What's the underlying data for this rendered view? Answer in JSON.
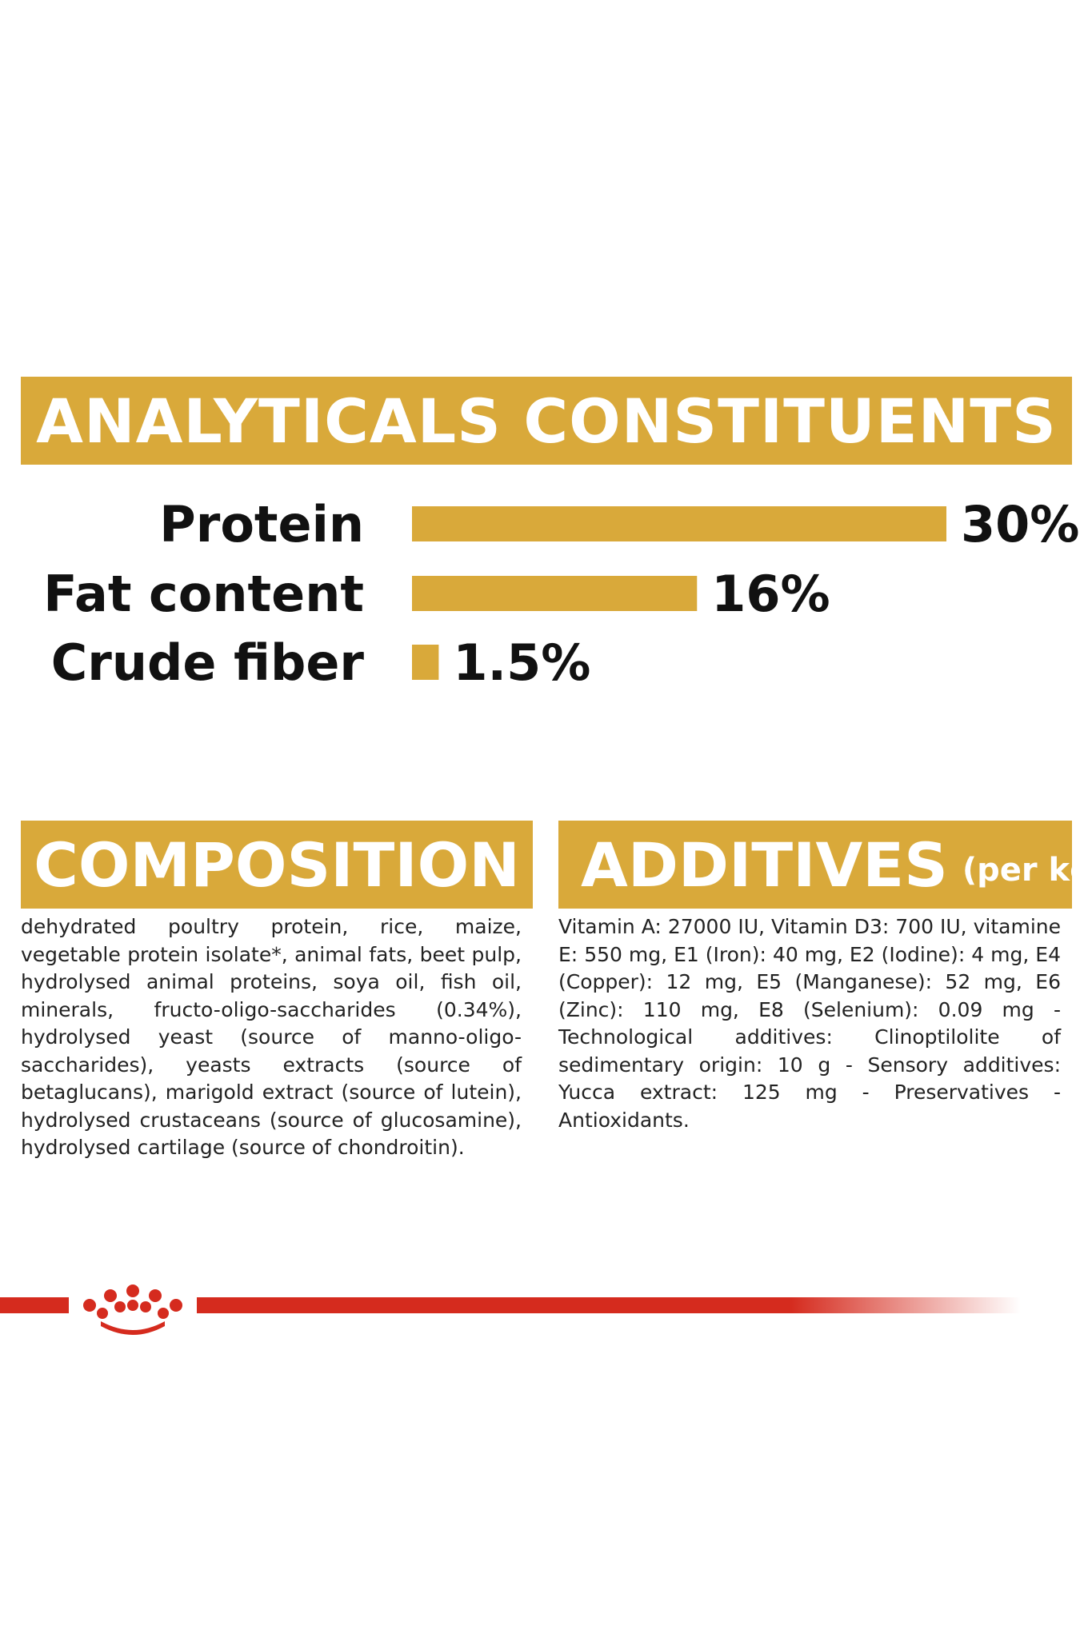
{
  "colors": {
    "accent": "#d9a93a",
    "brand_red": "#d52b1e",
    "text": "#111111"
  },
  "analytics": {
    "title": "ANALYTICALS CONSTITUENTS"
  },
  "chart_data": {
    "type": "bar",
    "orientation": "horizontal",
    "title": "ANALYTICALS CONSTITUENTS",
    "categories": [
      "Protein",
      "Fat content",
      "Crude fiber"
    ],
    "values": [
      30,
      16,
      1.5
    ],
    "value_labels": [
      "30%",
      "16%",
      "1.5%"
    ],
    "unit": "%",
    "xlim": [
      0,
      30
    ],
    "grid": false,
    "legend": "none"
  },
  "composition": {
    "title": "COMPOSITION",
    "text": "dehydrated poultry protein, rice, maize, vegetable protein isolate*, animal fats, beet pulp, hydrolysed animal proteins, soya oil, fish oil, minerals, fructo-oligo-saccharides (0.34%), hydrolysed yeast (source of manno-oligo-saccharides), yeasts extracts (source of betaglucans), marigold extract (source of lutein), hydrolysed crustaceans (source of glucosamine), hydrolysed cartilage (source of chondroitin)."
  },
  "additives": {
    "title": "ADDITIVES",
    "subtitle": "(per kg)",
    "text": "Vitamin A: 27000 IU, Vitamin D3: 700 IU, vitamine E: 550 mg, E1 (Iron): 40 mg, E2 (Iodine): 4 mg, E4 (Copper): 12 mg, E5 (Manganese): 52 mg, E6 (Zinc): 110 mg, E8 (Selenium): 0.09 mg - Technological additives: Clinoptilolite of sedimentary origin: 10 g - Sensory additives: Yucca extract: 125 mg - Preservatives - Antioxidants."
  },
  "brand": {
    "logo_icon": "crown-icon"
  }
}
